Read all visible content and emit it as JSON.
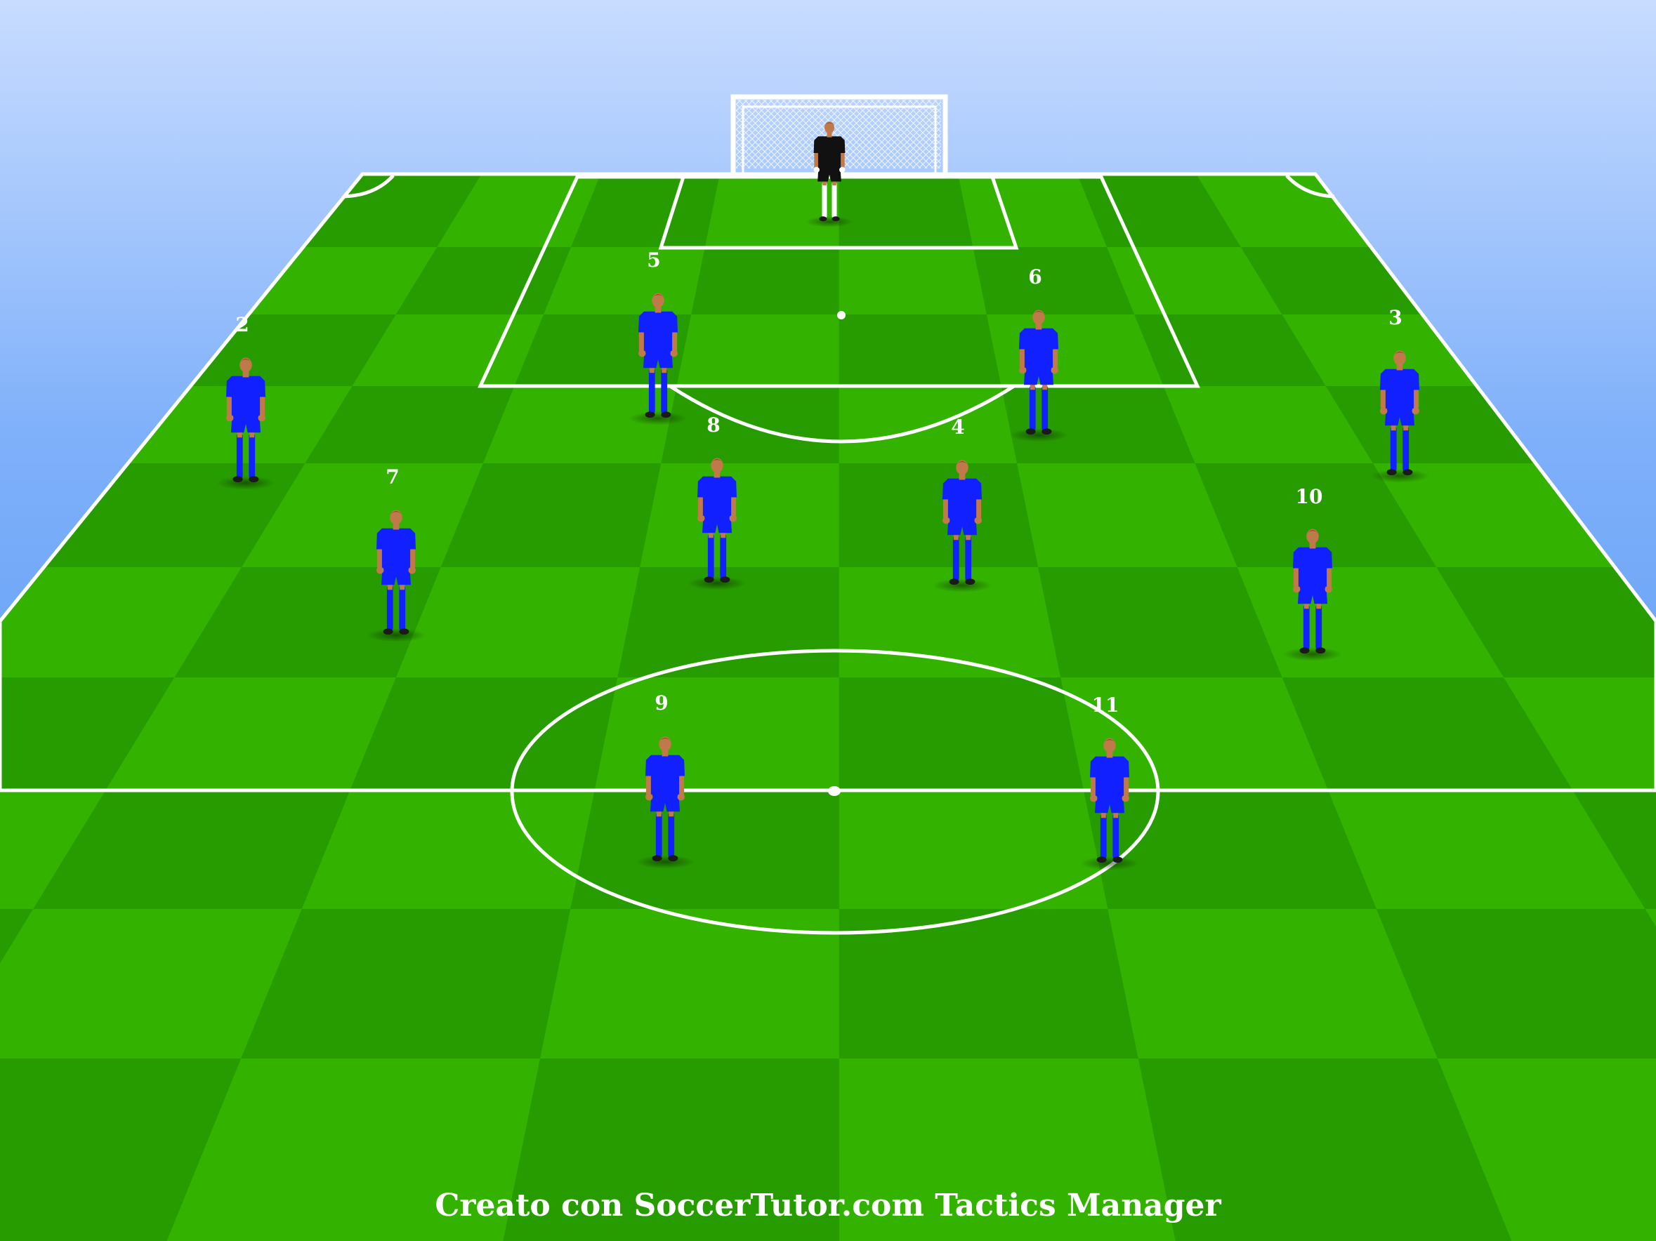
{
  "diagram": {
    "credit": "Creato con SoccerTutor.com Tactics Manager",
    "colors": {
      "sky_top": "#c8dcff",
      "sky_bottom": "#3f8ef2",
      "grass_light": "#33b200",
      "grass_dark": "#279c00",
      "lines": "#ffffff",
      "outfield_kit": "#1020ff",
      "goalkeeper_kit": "#111111",
      "skin": "#c07a4a"
    },
    "goalkeeper": {
      "number": "",
      "role": "goalkeeper"
    },
    "players": [
      {
        "number": "2"
      },
      {
        "number": "5"
      },
      {
        "number": "6"
      },
      {
        "number": "3"
      },
      {
        "number": "7"
      },
      {
        "number": "8"
      },
      {
        "number": "4"
      },
      {
        "number": "10"
      },
      {
        "number": "9"
      },
      {
        "number": "11"
      }
    ]
  }
}
